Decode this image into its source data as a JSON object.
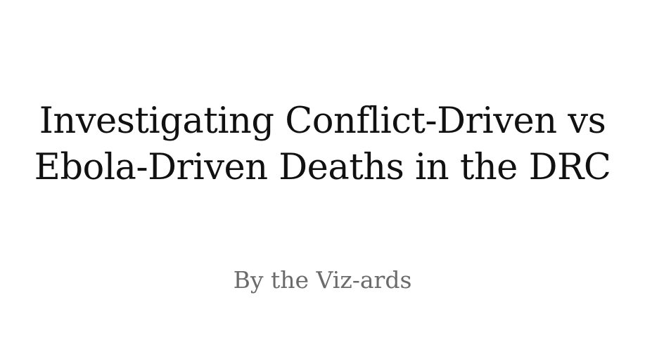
{
  "title": {
    "line1": "Investigating Conflict-Driven vs",
    "line2": "Ebola-Driven Deaths in the DRC"
  },
  "byline": "By the Viz-ards",
  "colors": {
    "background": "#ffffff",
    "title_text": "#111111",
    "byline_text": "#6b6b6b"
  }
}
